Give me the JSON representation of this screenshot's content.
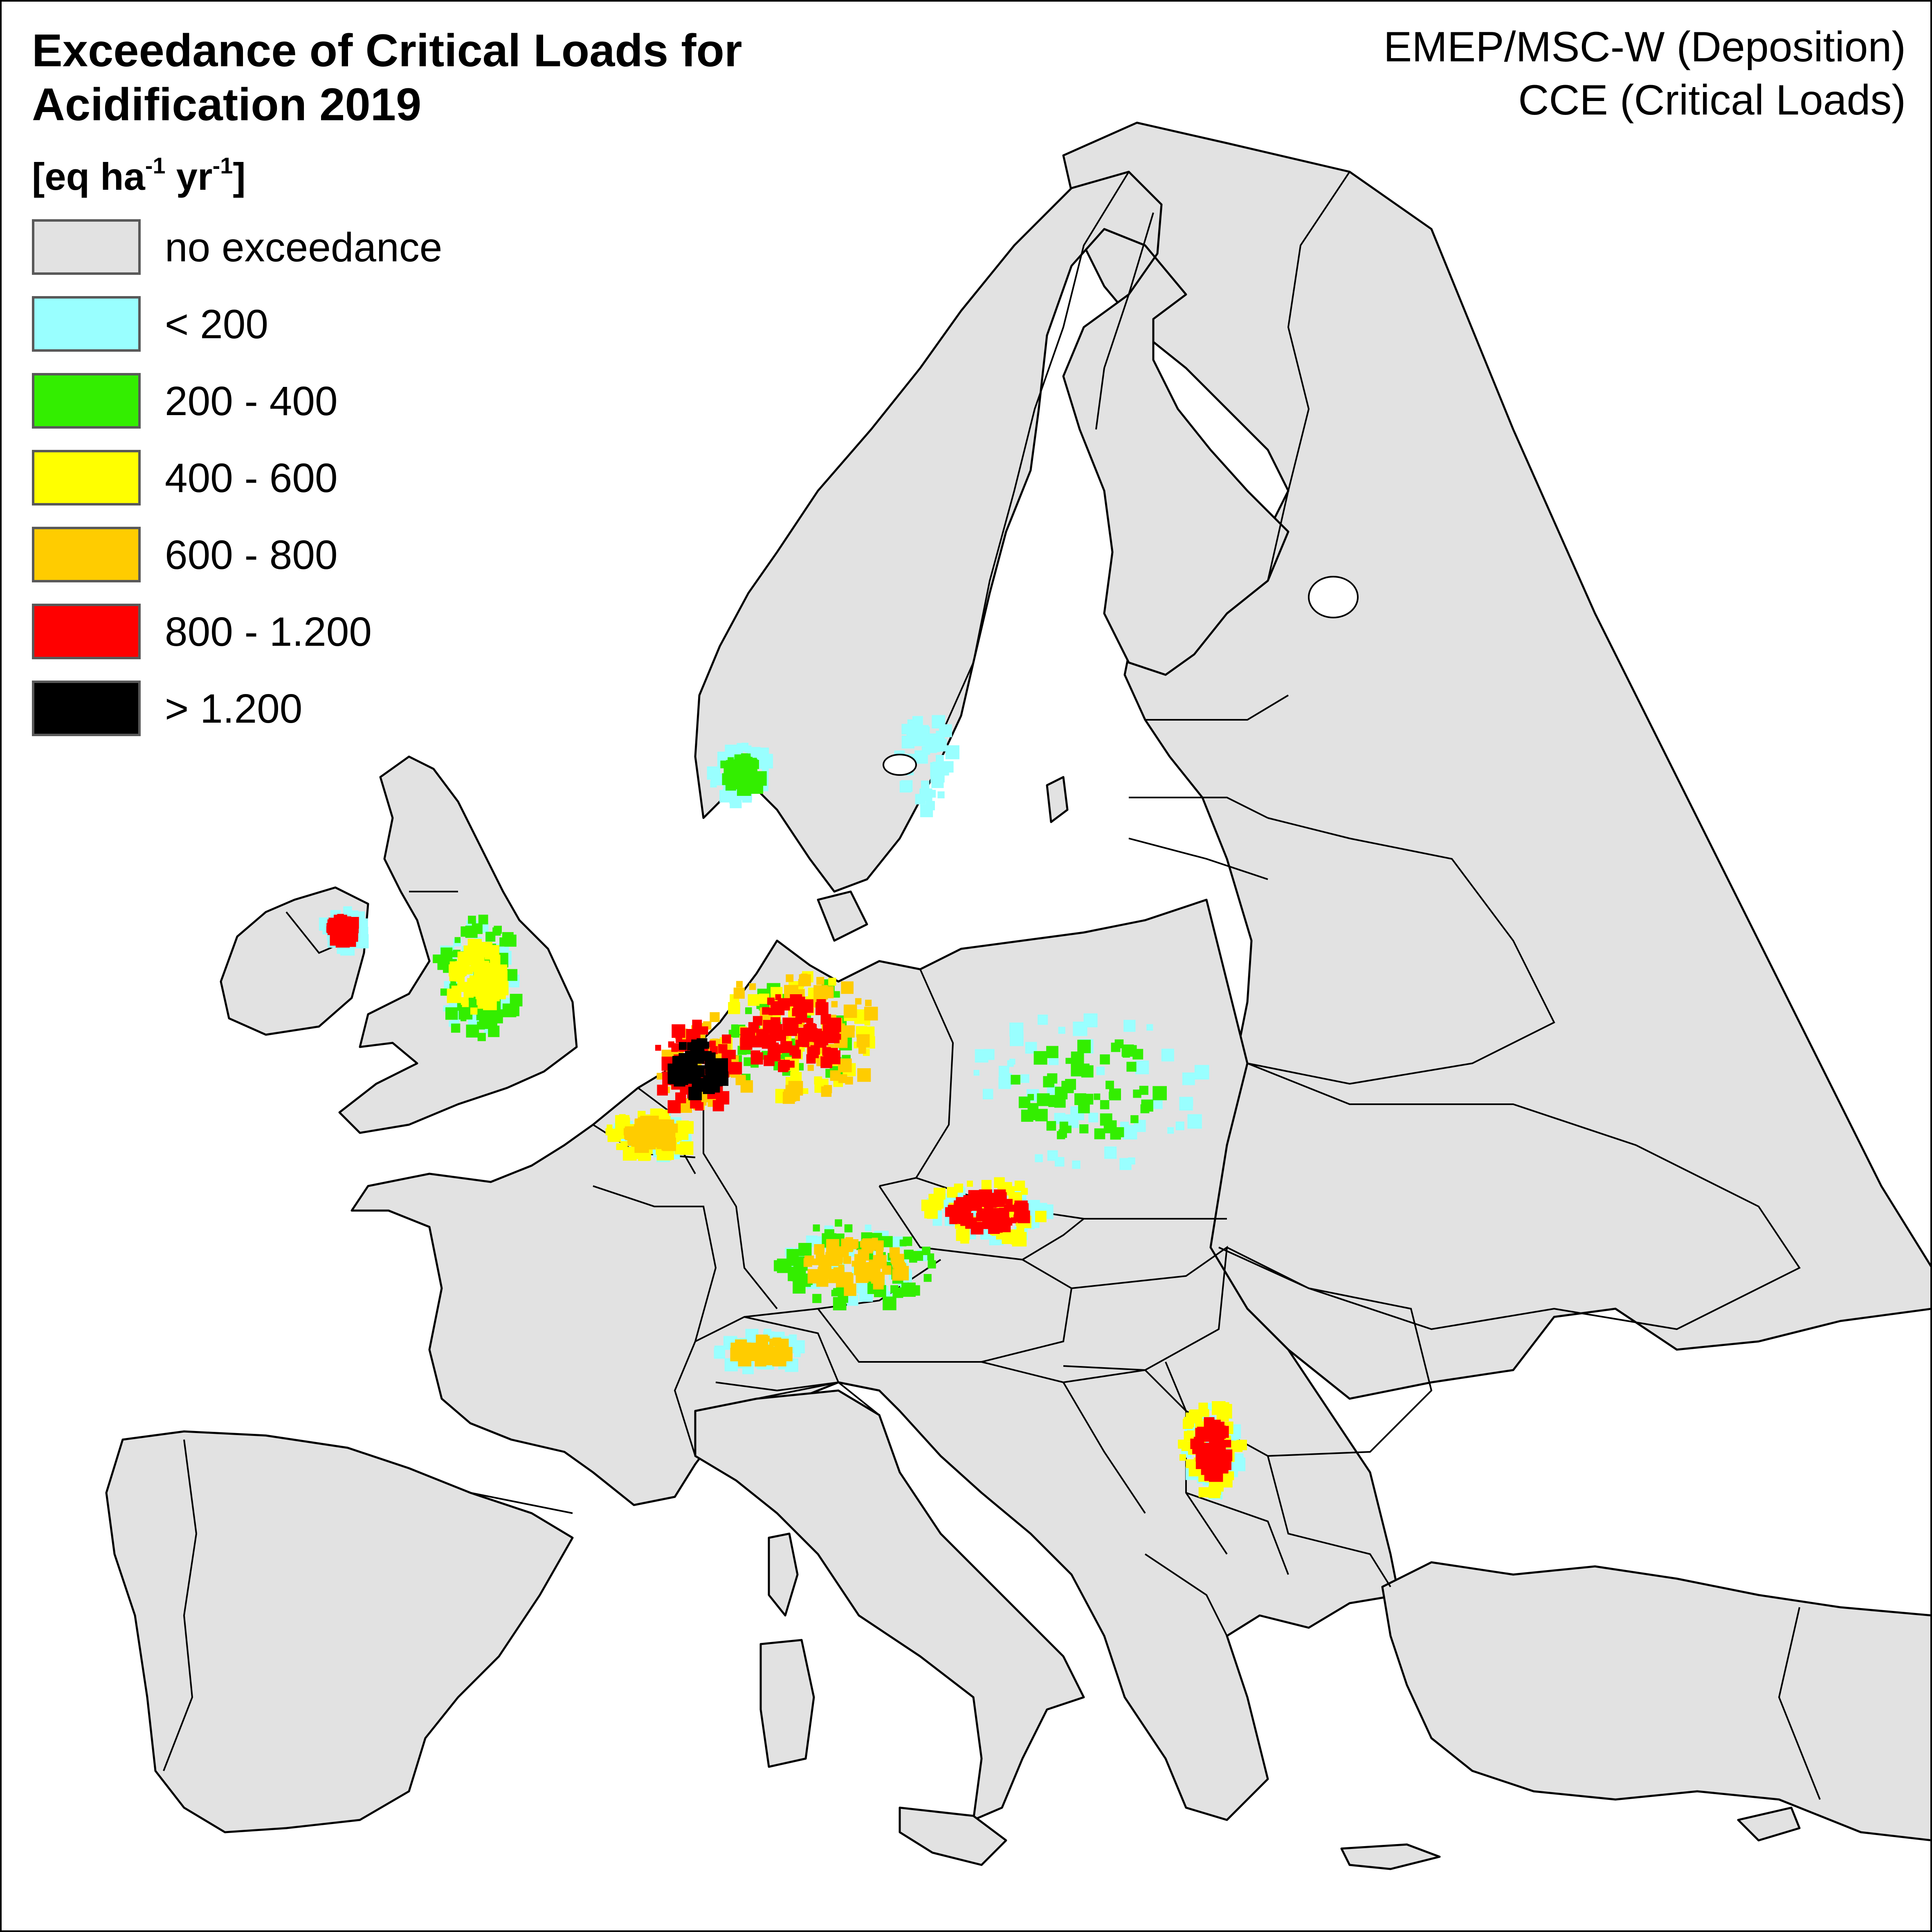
{
  "title_line1": "Exceedance of Critical Loads for",
  "title_line2": "Acidification 2019",
  "credits_line1": "EMEP/MSC-W (Deposition)",
  "credits_line2": "CCE (Critical Loads)",
  "units": {
    "prefix": "[eq ha",
    "exp1": "-1",
    "mid": " yr",
    "exp2": "-1",
    "suffix": "]"
  },
  "legend": [
    {
      "label": "no exceedance",
      "color": "#e2e2e2"
    },
    {
      "label": "< 200",
      "color": "#99ffff"
    },
    {
      "label": "200 - 400",
      "color": "#33ee00"
    },
    {
      "label": "400 - 600",
      "color": "#ffff00"
    },
    {
      "label": "600 - 800",
      "color": "#ffcc00"
    },
    {
      "label": "800 - 1.200",
      "color": "#ff0000"
    },
    {
      "label": "> 1.200",
      "color": "#000000"
    }
  ],
  "colors": {
    "land": "#e2e2e2",
    "sea": "#ffffff",
    "border": "#000000"
  },
  "exceedance_regions": [
    {
      "region": "Netherlands",
      "levels": [
        "> 1.200",
        "800 - 1.200",
        "600 - 800"
      ]
    },
    {
      "region": "Northwest Germany",
      "levels": [
        "800 - 1.200",
        "600 - 800",
        "400 - 600",
        "200 - 400"
      ]
    },
    {
      "region": "Belgium",
      "levels": [
        "600 - 800",
        "400 - 600",
        "< 200"
      ]
    },
    {
      "region": "Southern Germany",
      "levels": [
        "600 - 800",
        "200 - 400",
        "< 200"
      ]
    },
    {
      "region": "Poland",
      "levels": [
        "200 - 400",
        "< 200"
      ]
    },
    {
      "region": "Czechia",
      "levels": [
        "800 - 1.200",
        "400 - 600",
        "< 200"
      ]
    },
    {
      "region": "England",
      "levels": [
        "400 - 600",
        "200 - 400",
        "< 200"
      ]
    },
    {
      "region": "Northern Ireland",
      "levels": [
        "800 - 1.200",
        "< 200"
      ]
    },
    {
      "region": "Southern Norway",
      "levels": [
        "200 - 400",
        "< 200"
      ]
    },
    {
      "region": "Southern Sweden",
      "levels": [
        "< 200"
      ]
    },
    {
      "region": "Switzerland",
      "levels": [
        "600 - 800",
        "< 200"
      ]
    },
    {
      "region": "Serbia",
      "levels": [
        "800 - 1.200",
        "400 - 600",
        "< 200"
      ]
    }
  ]
}
